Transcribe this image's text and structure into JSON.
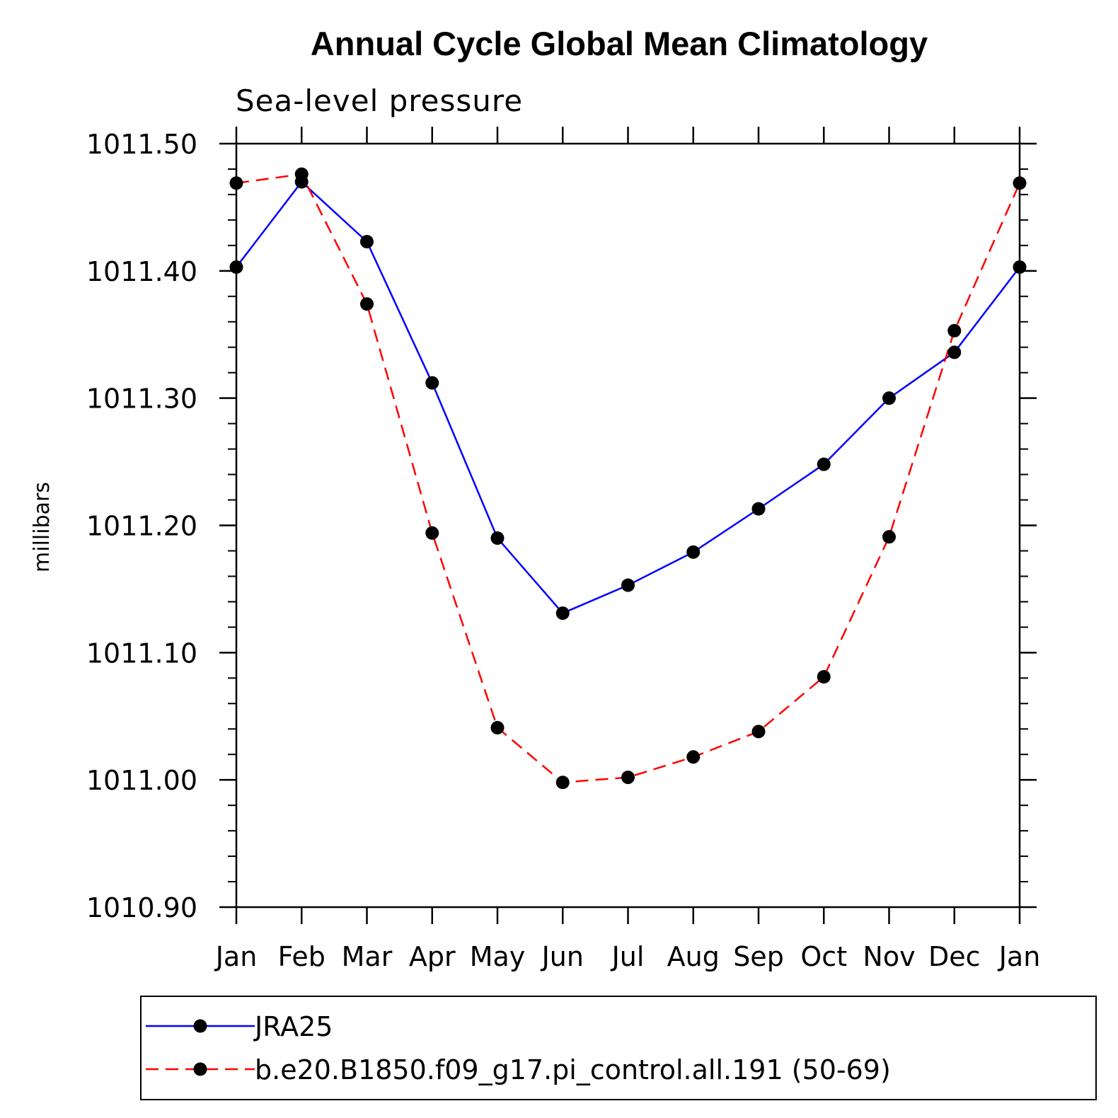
{
  "chart_data": {
    "type": "line",
    "title": "Annual Cycle Global Mean Climatology",
    "subtitle": "Sea-level pressure",
    "xlabel": "",
    "ylabel": "millibars",
    "categories": [
      "Jan",
      "Feb",
      "Mar",
      "Apr",
      "May",
      "Jun",
      "Jul",
      "Aug",
      "Sep",
      "Oct",
      "Nov",
      "Dec",
      "Jan"
    ],
    "ylim": [
      1010.9,
      1011.5
    ],
    "yticks": [
      "1011.50",
      "1011.40",
      "1011.30",
      "1011.20",
      "1011.10",
      "1011.00",
      "1010.90"
    ],
    "grid": false,
    "legend_position": "bottom",
    "series": [
      {
        "name": "JRA25",
        "color": "#0000ff",
        "dash": "solid",
        "values": [
          1011.403,
          1011.47,
          1011.423,
          1011.312,
          1011.19,
          1011.131,
          1011.153,
          1011.179,
          1011.213,
          1011.248,
          1011.3,
          1011.336,
          1011.403
        ]
      },
      {
        "name": "b.e20.B1850.f09_g17.pi_control.all.191 (50-69)",
        "color": "#ff0000",
        "dash": "dashed",
        "values": [
          1011.469,
          1011.476,
          1011.374,
          1011.194,
          1011.041,
          1010.998,
          1011.002,
          1011.018,
          1011.038,
          1011.081,
          1011.191,
          1011.353,
          1011.469
        ]
      }
    ]
  }
}
